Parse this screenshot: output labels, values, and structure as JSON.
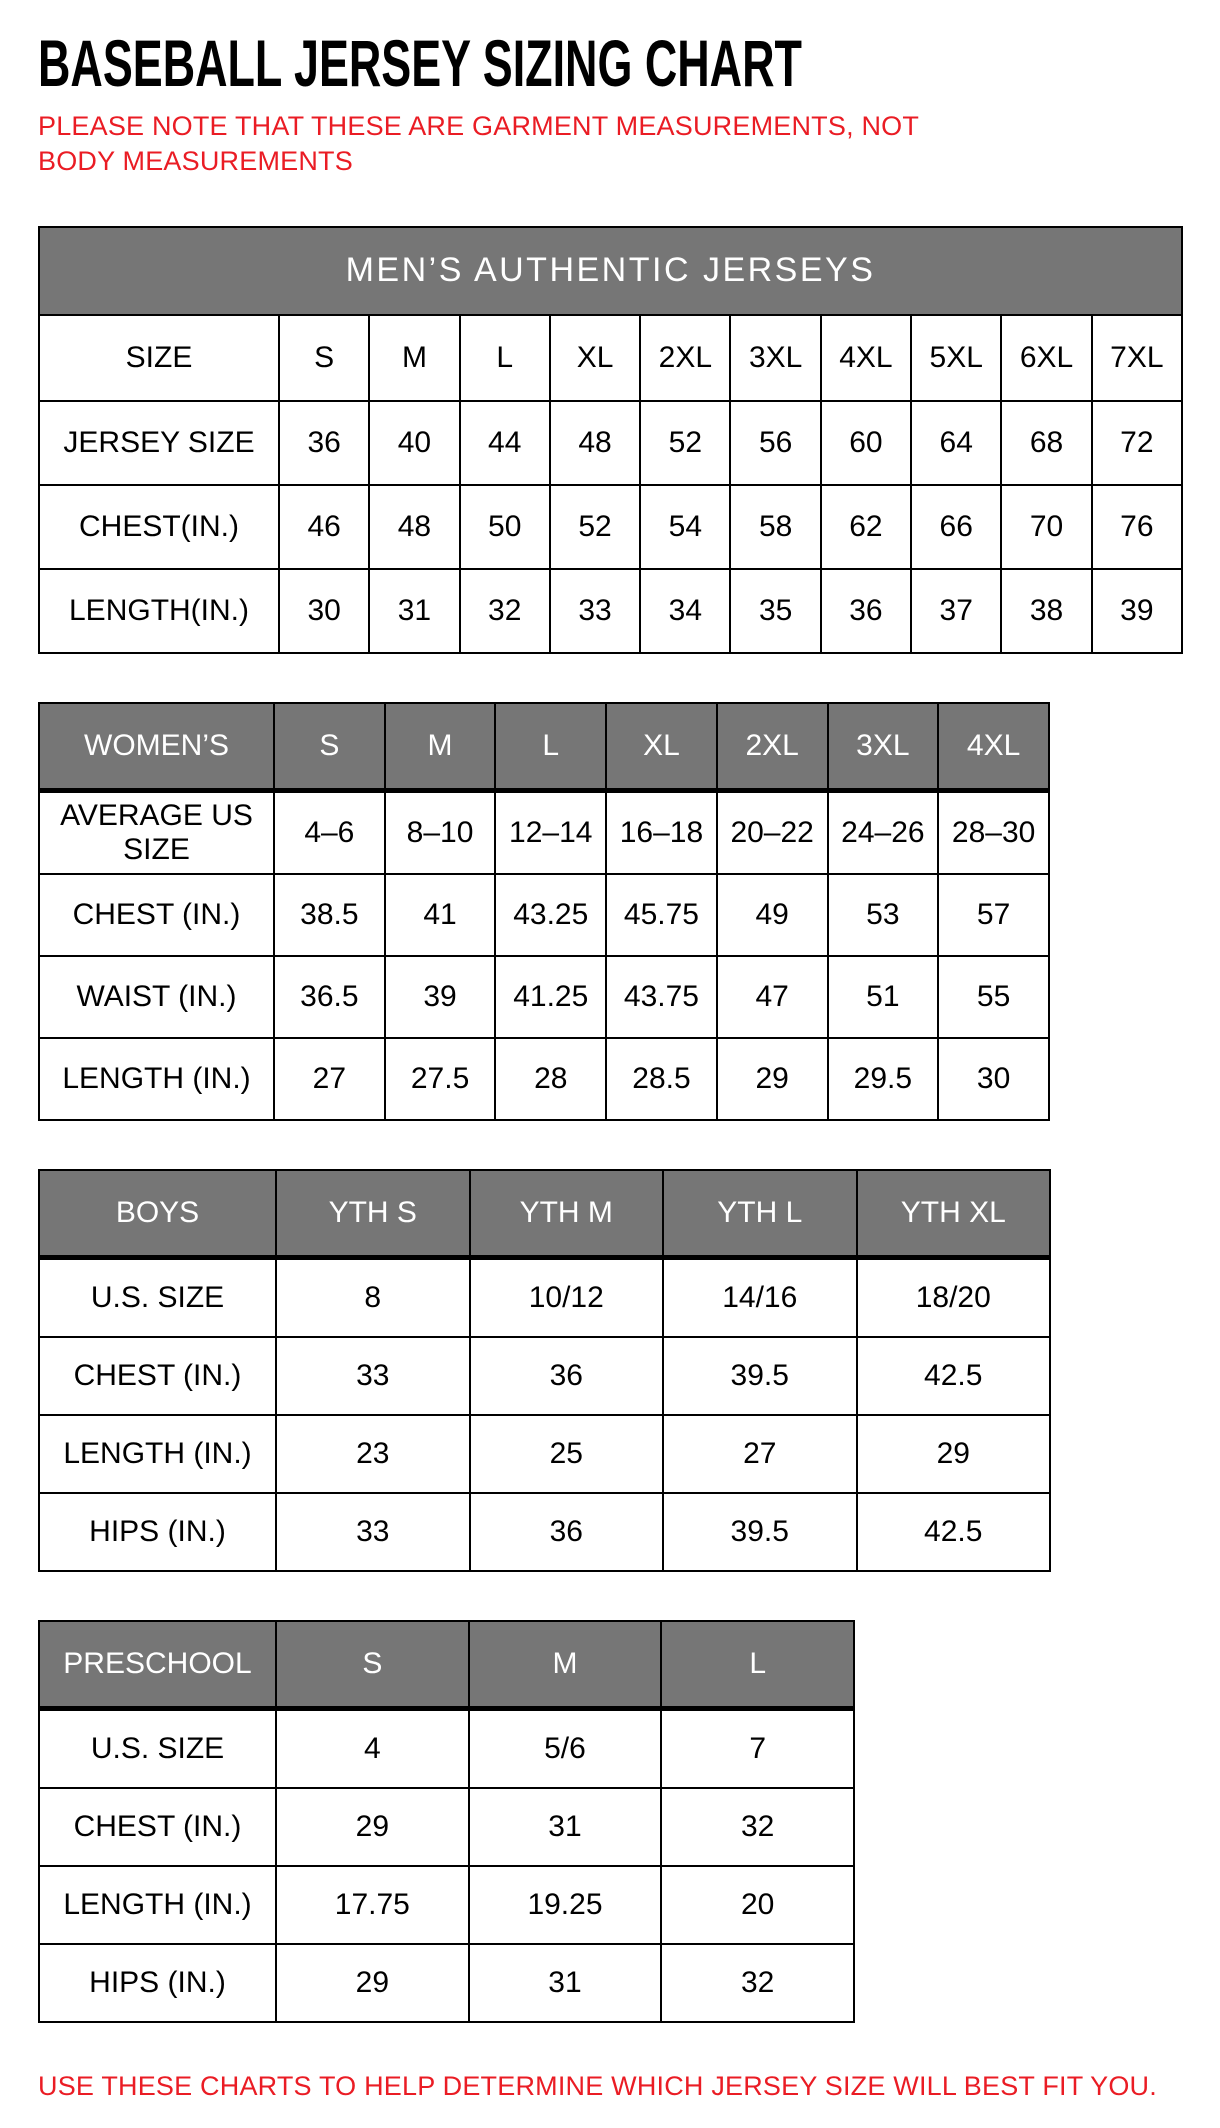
{
  "page": {
    "title": "BASEBALL JERSEY SIZING CHART",
    "note": "PLEASE NOTE THAT THESE ARE GARMENT MEASUREMENTS, NOT BODY MEASUREMENTS",
    "footer": "USE THESE CHARTS TO HELP DETERMINE WHICH JERSEY SIZE WILL BEST FIT YOU."
  },
  "colors": {
    "header_gray": "#767676",
    "accent_red": "#ea1c24",
    "table_border": "#000000"
  },
  "tables": [
    {
      "id": "mens",
      "banner": "MEN’S AUTHENTIC JERSEYS",
      "header_style": "plain",
      "columns": [
        "SIZE",
        "S",
        "M",
        "L",
        "XL",
        "2XL",
        "3XL",
        "4XL",
        "5XL",
        "6XL",
        "7XL"
      ],
      "rows": [
        [
          "JERSEY SIZE",
          "36",
          "40",
          "44",
          "48",
          "52",
          "56",
          "60",
          "64",
          "68",
          "72"
        ],
        [
          "CHEST(IN.)",
          "46",
          "48",
          "50",
          "52",
          "54",
          "58",
          "62",
          "66",
          "70",
          "76"
        ],
        [
          "LENGTH(IN.)",
          "30",
          "31",
          "32",
          "33",
          "34",
          "35",
          "36",
          "37",
          "38",
          "39"
        ]
      ]
    },
    {
      "id": "womens",
      "header_style": "gray",
      "columns": [
        "WOMEN’S",
        "S",
        "M",
        "L",
        "XL",
        "2XL",
        "3XL",
        "4XL"
      ],
      "rows": [
        [
          "AVERAGE US SIZE",
          "4–6",
          "8–10",
          "12–14",
          "16–18",
          "20–22",
          "24–26",
          "28–30"
        ],
        [
          "CHEST (IN.)",
          "38.5",
          "41",
          "43.25",
          "45.75",
          "49",
          "53",
          "57"
        ],
        [
          "WAIST (IN.)",
          "36.5",
          "39",
          "41.25",
          "43.75",
          "47",
          "51",
          "55"
        ],
        [
          "LENGTH (IN.)",
          "27",
          "27.5",
          "28",
          "28.5",
          "29",
          "29.5",
          "30"
        ]
      ]
    },
    {
      "id": "boys",
      "header_style": "gray",
      "columns": [
        "BOYS",
        "YTH S",
        "YTH M",
        "YTH L",
        "YTH XL"
      ],
      "rows": [
        [
          "U.S. SIZE",
          "8",
          "10/12",
          "14/16",
          "18/20"
        ],
        [
          "CHEST (IN.)",
          "33",
          "36",
          "39.5",
          "42.5"
        ],
        [
          "LENGTH (IN.)",
          "23",
          "25",
          "27",
          "29"
        ],
        [
          "HIPS (IN.)",
          "33",
          "36",
          "39.5",
          "42.5"
        ]
      ]
    },
    {
      "id": "preschool",
      "header_style": "gray",
      "columns": [
        "PRESCHOOL",
        "S",
        "M",
        "L"
      ],
      "rows": [
        [
          "U.S. SIZE",
          "4",
          "5/6",
          "7"
        ],
        [
          "CHEST (IN.)",
          "29",
          "31",
          "32"
        ],
        [
          "LENGTH (IN.)",
          "17.75",
          "19.25",
          "20"
        ],
        [
          "HIPS (IN.)",
          "29",
          "31",
          "32"
        ]
      ]
    }
  ]
}
